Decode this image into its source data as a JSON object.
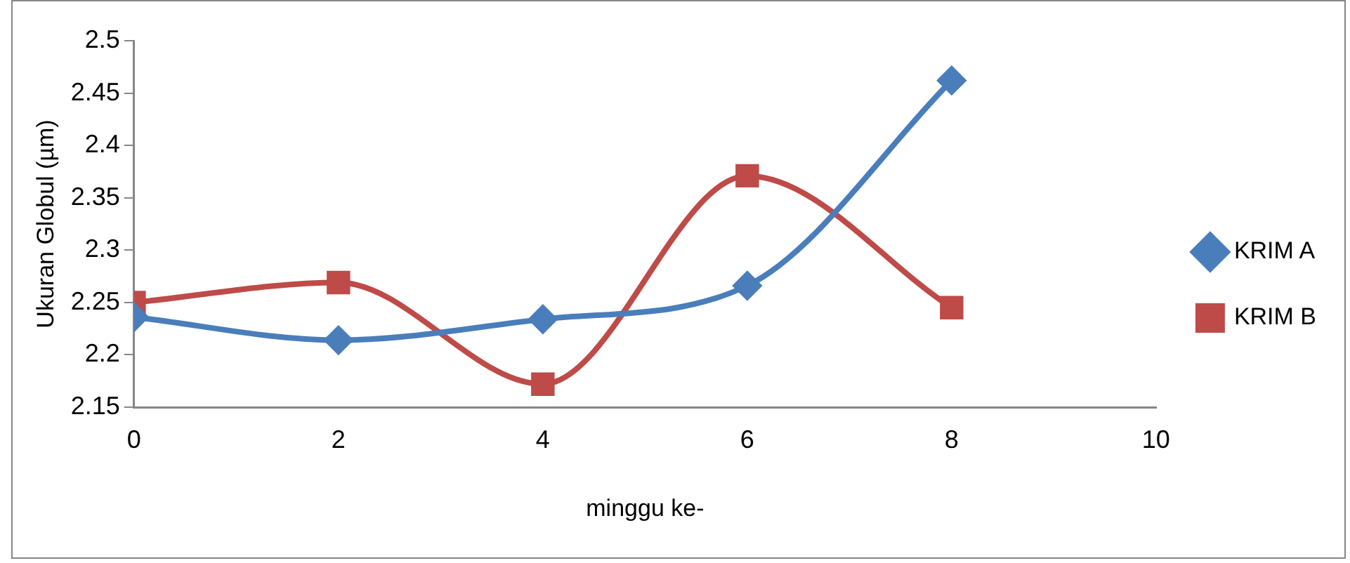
{
  "chart_data": {
    "type": "line",
    "xlabel": "minggu ke-",
    "ylabel": "Ukuran Globul (µm)",
    "x": [
      0,
      2,
      4,
      6,
      8
    ],
    "series": [
      {
        "name": "KRIM A",
        "color": "#4a7ebb",
        "marker": "diamond",
        "values": [
          2.236,
          2.214,
          2.234,
          2.266,
          2.462
        ]
      },
      {
        "name": "KRIM B",
        "color": "#be4b48",
        "marker": "square",
        "values": [
          2.25,
          2.269,
          2.172,
          2.371,
          2.245
        ]
      }
    ],
    "xlim": [
      0,
      10
    ],
    "xticks": [
      0,
      2,
      4,
      6,
      8,
      10
    ],
    "ylim": [
      2.15,
      2.5
    ],
    "yticks": [
      2.15,
      2.2,
      2.25,
      2.3,
      2.35,
      2.4,
      2.45,
      2.5
    ],
    "grid": false,
    "legend": "right",
    "line_style": "solid"
  }
}
